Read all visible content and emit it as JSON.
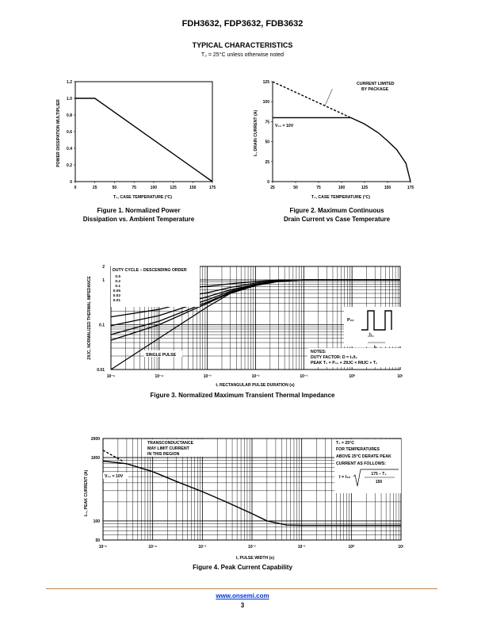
{
  "header": {
    "title": "FDH3632, FDP3632, FDB3632"
  },
  "section": {
    "title": "TYPICAL CHARACTERISTICS",
    "subtitle": "T₂ = 25°C unless otherwise noted"
  },
  "figures": {
    "fig1": {
      "caption_line1": "Figure 1. Normalized Power",
      "caption_line2": "Dissipation vs. Ambient Temperature",
      "ylabel": "POWER DISSIPATION MULTIPLIER",
      "xlabel": "T₂, CASE TEMPERATURE (°C)"
    },
    "fig2": {
      "caption_line1": "Figure 2. Maximum Continuous",
      "caption_line2": "Drain Current vs Case Temperature",
      "ylabel": "I₂, DRAIN CURRENT (A)",
      "xlabel": "T₂, CASE TEMPERATURE (°C)",
      "annotation_line1": "CURRENT LIMITED",
      "annotation_line2": "BY PACKAGE",
      "vgs_label": "V₂₂ = 10V"
    },
    "fig3": {
      "caption": "Figure 3. Normalized Maximum Transient Thermal Impedance",
      "ylabel": "ZθJC, NORMALIZED THERMAL IMPEDANCE",
      "xlabel": "t, RECTANGULAR PULSE DURATION (s)",
      "duty_title": "DUTY CYCLE – DESCENDING ORDER",
      "duty_values": [
        "0.5",
        "0.2",
        "0.1",
        "0.05",
        "0.02",
        "0.01"
      ],
      "single_pulse": "SINGLE PULSE",
      "notes_title": "NOTES:",
      "notes_line1": "DUTY FACTOR: D = t₁/t₂",
      "notes_line2": "PEAK T₂ = P₂₂ × ZθJC × RθJC + T₂",
      "pdm_label": "P₂₂",
      "t1_label": "t₁",
      "t2_label": "t₂"
    },
    "fig4": {
      "caption": "Figure 4. Peak Current Capability",
      "ylabel": "I₂₂, PEAK CURRENT (A)",
      "xlabel": "t, PULSE WIDTH (s)",
      "annot_left_line1": "TRANSCONDUCTANCE",
      "annot_left_line2": "MAY LIMIT CURRENT",
      "annot_left_line3": "IN THIS REGION",
      "vgs_label": "V₂₂ = 10V",
      "annot_right_line1": "T₂ = 25°C",
      "annot_right_line2": "FOR TEMPERATURES",
      "annot_right_line3": "ABOVE 25°C DERATE PEAK",
      "annot_right_line4": "CURRENT AS FOLLOWS:",
      "formula_lhs": "I = I₂₂",
      "formula_num": "175 – T₂",
      "formula_den": "150"
    }
  },
  "chart_data": [
    {
      "type": "line",
      "title": "Figure 1. Normalized Power Dissipation vs. Ambient Temperature",
      "xlabel": "T₂, CASE TEMPERATURE (°C)",
      "ylabel": "POWER DISSIPATION MULTIPLIER",
      "xlim": [
        0,
        175
      ],
      "ylim": [
        0,
        1.2
      ],
      "xticks": [
        "0",
        "25",
        "50",
        "75",
        "100",
        "125",
        "150",
        "175"
      ],
      "yticks": [
        "0",
        "0.2",
        "0.4",
        "0.6",
        "0.8",
        "1.0",
        "1.2"
      ],
      "series": [
        {
          "values_x": [
            0,
            25,
            175
          ],
          "values_y": [
            1.0,
            1.0,
            0
          ]
        }
      ]
    },
    {
      "type": "line",
      "title": "Figure 2. Maximum Continuous Drain Current vs Case Temperature",
      "xlabel": "T₂, CASE TEMPERATURE (°C)",
      "ylabel": "I₂, DRAIN CURRENT (A)",
      "xlim": [
        25,
        175
      ],
      "ylim": [
        0,
        125
      ],
      "xticks": [
        "25",
        "50",
        "75",
        "100",
        "125",
        "150",
        "175"
      ],
      "yticks": [
        "0",
        "25",
        "50",
        "75",
        "100",
        "125"
      ],
      "series": [
        {
          "name": "CURRENT LIMITED BY PACKAGE",
          "style": "dashed",
          "values_x": [
            25,
            110
          ],
          "values_y": [
            125,
            80
          ]
        },
        {
          "name": "V₂₂ = 10V",
          "values_x": [
            25,
            110
          ],
          "values_y": [
            80,
            80
          ]
        },
        {
          "name": "derating",
          "values_x": [
            110,
            125,
            140,
            150,
            160,
            170,
            175
          ],
          "values_y": [
            80,
            72,
            61,
            51,
            40,
            23,
            0
          ]
        }
      ]
    },
    {
      "type": "line",
      "title": "Figure 3. Normalized Maximum Transient Thermal Impedance",
      "xlabel": "t, RECTANGULAR PULSE DURATION (s)",
      "ylabel": "ZθJC, NORMALIZED THERMAL IMPEDANCE",
      "xscale": "log",
      "yscale": "log",
      "xlim": [
        1e-05,
        10
      ],
      "ylim": [
        0.01,
        2
      ],
      "xticks": [
        "10⁻⁵",
        "10⁻⁴",
        "10⁻³",
        "10⁻²",
        "10⁻¹",
        "10⁰",
        "10¹"
      ],
      "yticks": [
        "0.01",
        "0.1",
        "1",
        "2"
      ],
      "x": [
        1e-05,
        0.0001,
        0.001,
        0.003,
        0.01,
        0.03,
        0.1,
        1,
        10
      ],
      "series": [
        {
          "name": "0.5",
          "values": [
            0.55,
            0.6,
            0.72,
            0.82,
            0.92,
            1.0,
            1.0,
            1.0,
            1.0
          ]
        },
        {
          "name": "0.2",
          "values": [
            0.26,
            0.34,
            0.52,
            0.68,
            0.85,
            0.97,
            1.0,
            1.0,
            1.0
          ]
        },
        {
          "name": "0.1",
          "values": [
            0.15,
            0.22,
            0.42,
            0.6,
            0.8,
            0.95,
            1.0,
            1.0,
            1.0
          ]
        },
        {
          "name": "0.05",
          "values": [
            0.095,
            0.16,
            0.36,
            0.56,
            0.78,
            0.94,
            1.0,
            1.0,
            1.0
          ]
        },
        {
          "name": "0.02",
          "values": [
            0.06,
            0.12,
            0.32,
            0.53,
            0.77,
            0.94,
            1.0,
            1.0,
            1.0
          ]
        },
        {
          "name": "0.01",
          "values": [
            0.045,
            0.1,
            0.3,
            0.52,
            0.76,
            0.93,
            1.0,
            1.0,
            1.0
          ]
        },
        {
          "name": "SINGLE PULSE",
          "values": [
            0.01,
            0.05,
            0.25,
            0.5,
            0.75,
            0.93,
            1.0,
            1.0,
            1.0
          ]
        }
      ]
    },
    {
      "type": "line",
      "title": "Figure 4. Peak Current Capability",
      "xlabel": "t, PULSE WIDTH (s)",
      "ylabel": "I₂₂, PEAK CURRENT (A)",
      "xscale": "log",
      "yscale": "log",
      "xlim": [
        1e-05,
        10
      ],
      "ylim": [
        50,
        2000
      ],
      "xticks": [
        "10⁻⁵",
        "10⁻⁴",
        "10⁻³",
        "10⁻²",
        "10⁻¹",
        "10⁰",
        "10¹"
      ],
      "yticks": [
        "50",
        "100",
        "1000",
        "2000"
      ],
      "series": [
        {
          "name": "TRANSCONDUCTANCE MAY LIMIT CURRENT IN THIS REGION",
          "style": "dashed",
          "values_x": [
            1e-05,
            2.5e-05
          ],
          "values_y": [
            1300,
            880
          ]
        },
        {
          "name": "V₂₂ = 10V",
          "values_x": [
            1e-05,
            3e-05,
            0.0001,
            0.0003,
            0.001,
            0.003,
            0.01,
            0.02,
            0.05,
            0.1,
            1,
            10
          ],
          "values_y": [
            880,
            800,
            600,
            420,
            290,
            200,
            130,
            100,
            86,
            85,
            85,
            85
          ]
        }
      ]
    }
  ]
}
